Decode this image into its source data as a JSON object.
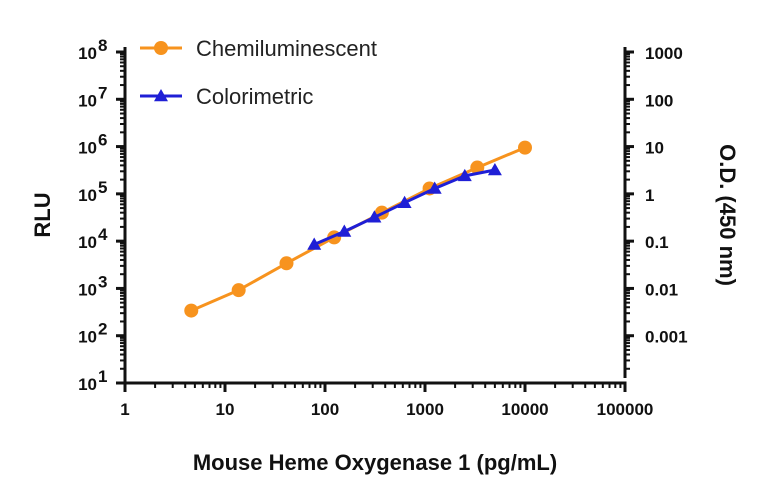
{
  "chart_data": {
    "type": "line",
    "title": "",
    "xlabel": "Mouse Heme Oxygenase 1 (pg/mL)",
    "ylabel_left": "RLU",
    "ylabel_right": "O.D. (450 nm)",
    "x_scale": "log",
    "xlim": [
      1,
      100000
    ],
    "x_ticks": [
      "1",
      "10",
      "100",
      "1000",
      "10000",
      "100000"
    ],
    "y_left_scale": "log",
    "ylim_left": [
      10,
      100000000
    ],
    "y_left_ticks": [
      {
        "base": "10",
        "exp": "1"
      },
      {
        "base": "10",
        "exp": "2"
      },
      {
        "base": "10",
        "exp": "3"
      },
      {
        "base": "10",
        "exp": "4"
      },
      {
        "base": "10",
        "exp": "5"
      },
      {
        "base": "10",
        "exp": "6"
      },
      {
        "base": "10",
        "exp": "7"
      },
      {
        "base": "10",
        "exp": "8"
      }
    ],
    "y_right_scale": "log",
    "ylim_right": [
      0.0001,
      1000
    ],
    "y_right_ticks": [
      "0.001",
      "0.01",
      "0.1",
      "1",
      "10",
      "100",
      "1000"
    ],
    "legend_position": "top-left",
    "grid": false,
    "series": [
      {
        "name": "Chemiluminescent",
        "axis": "left",
        "marker": "circle",
        "color": "#F7931E",
        "x": [
          4.6,
          13.7,
          41.2,
          123.5,
          370.4,
          1111,
          3333,
          10000
        ],
        "y": [
          340,
          920,
          3400,
          12000,
          40000,
          130000,
          360000,
          950000
        ]
      },
      {
        "name": "Colorimetric",
        "axis": "right",
        "marker": "triangle",
        "color": "#1F1FD6",
        "x": [
          78,
          156,
          312,
          625,
          1250,
          2500,
          5000
        ],
        "y": [
          0.085,
          0.16,
          0.32,
          0.65,
          1.3,
          2.4,
          3.2
        ]
      }
    ]
  }
}
